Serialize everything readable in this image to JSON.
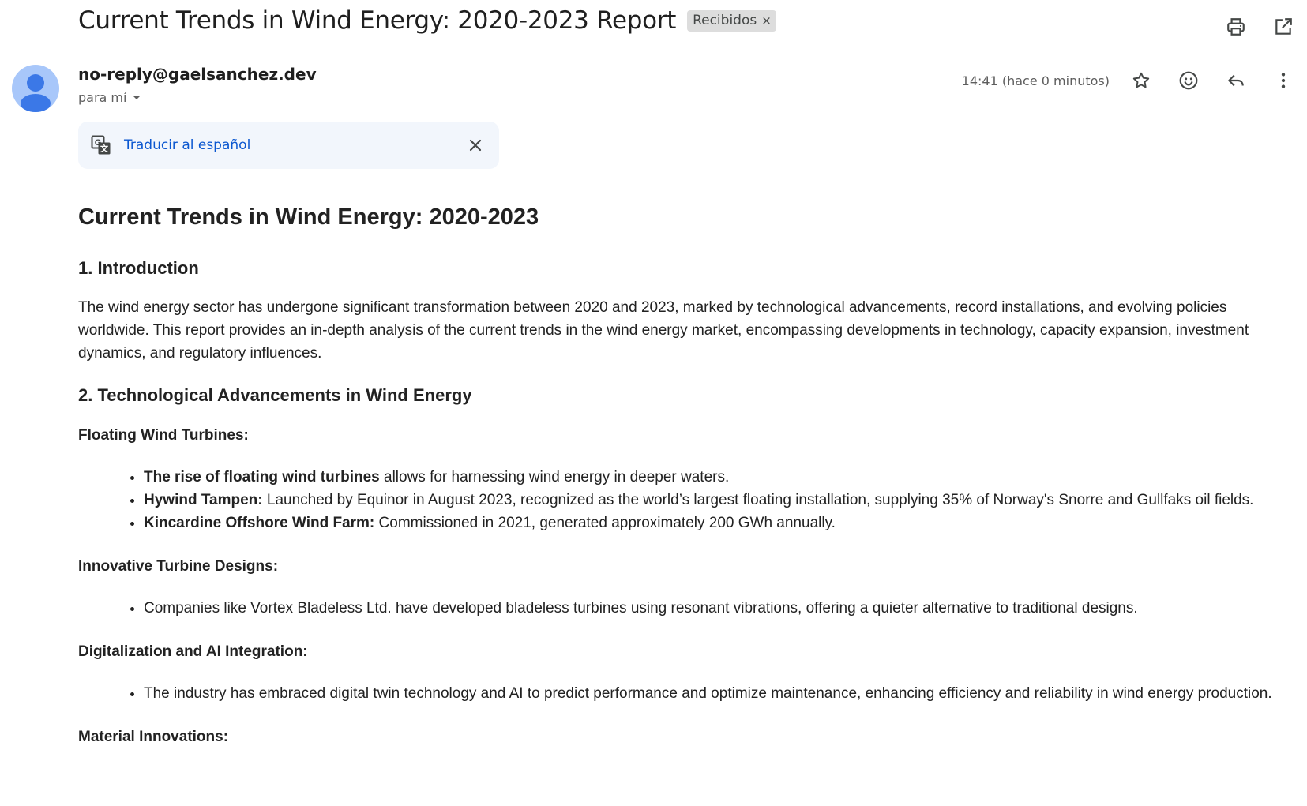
{
  "header": {
    "subject": "Current Trends in Wind Energy: 2020-2023 Report",
    "label": "Recibidos",
    "label_remove": "×"
  },
  "message": {
    "sender": "no-reply@gaelsanchez.dev",
    "to": "para mí",
    "timestamp": "14:41 (hace 0 minutos)"
  },
  "translate": {
    "label": "Traducir al español"
  },
  "body": {
    "title": "Current Trends in Wind Energy: 2020-2023",
    "sections": {
      "intro": {
        "heading": "1. Introduction",
        "paragraph": "The wind energy sector has undergone significant transformation between 2020 and 2023, marked by technological advancements, record installations, and evolving policies worldwide. This report provides an in-depth analysis of the current trends in the wind energy market, encompassing developments in technology, capacity expansion, investment dynamics, and regulatory influences."
      },
      "tech": {
        "heading": "2. Technological Advancements in Wind Energy",
        "floating": {
          "title": "Floating Wind Turbines:",
          "items": [
            {
              "bold": "The rise of floating wind turbines",
              "text": " allows for harnessing wind energy in deeper waters."
            },
            {
              "bold": "Hywind Tampen:",
              "text": " Launched by Equinor in August 2023, recognized as the world’s largest floating installation, supplying 35% of Norway's Snorre and Gullfaks oil fields."
            },
            {
              "bold": "Kincardine Offshore Wind Farm:",
              "text": " Commissioned in 2021, generated approximately 200 GWh annually."
            }
          ]
        },
        "innovative": {
          "title": "Innovative Turbine Designs:",
          "items": [
            "Companies like Vortex Bladeless Ltd. have developed bladeless turbines using resonant vibrations, offering a quieter alternative to traditional designs."
          ]
        },
        "digital": {
          "title": "Digitalization and AI Integration:",
          "items": [
            "The industry has embraced digital twin technology and AI to predict performance and optimize maintenance, enhancing efficiency and reliability in wind energy production."
          ]
        },
        "material": {
          "title": "Material Innovations:"
        }
      }
    }
  },
  "icons": {
    "print": "print-icon",
    "open_new": "open-in-new-window-icon",
    "star": "star-icon",
    "emoji": "emoji-reaction-icon",
    "reply": "reply-icon",
    "more": "more-vert-icon",
    "translate": "translate-icon",
    "close": "close-icon",
    "avatar": "default-avatar-icon"
  },
  "colors": {
    "link": "#0b57d0",
    "avatar_bg": "#a8c7fa",
    "avatar_fg": "#3b78e7",
    "chip_bg": "#dddddd",
    "translate_bg": "#f2f6fc"
  }
}
